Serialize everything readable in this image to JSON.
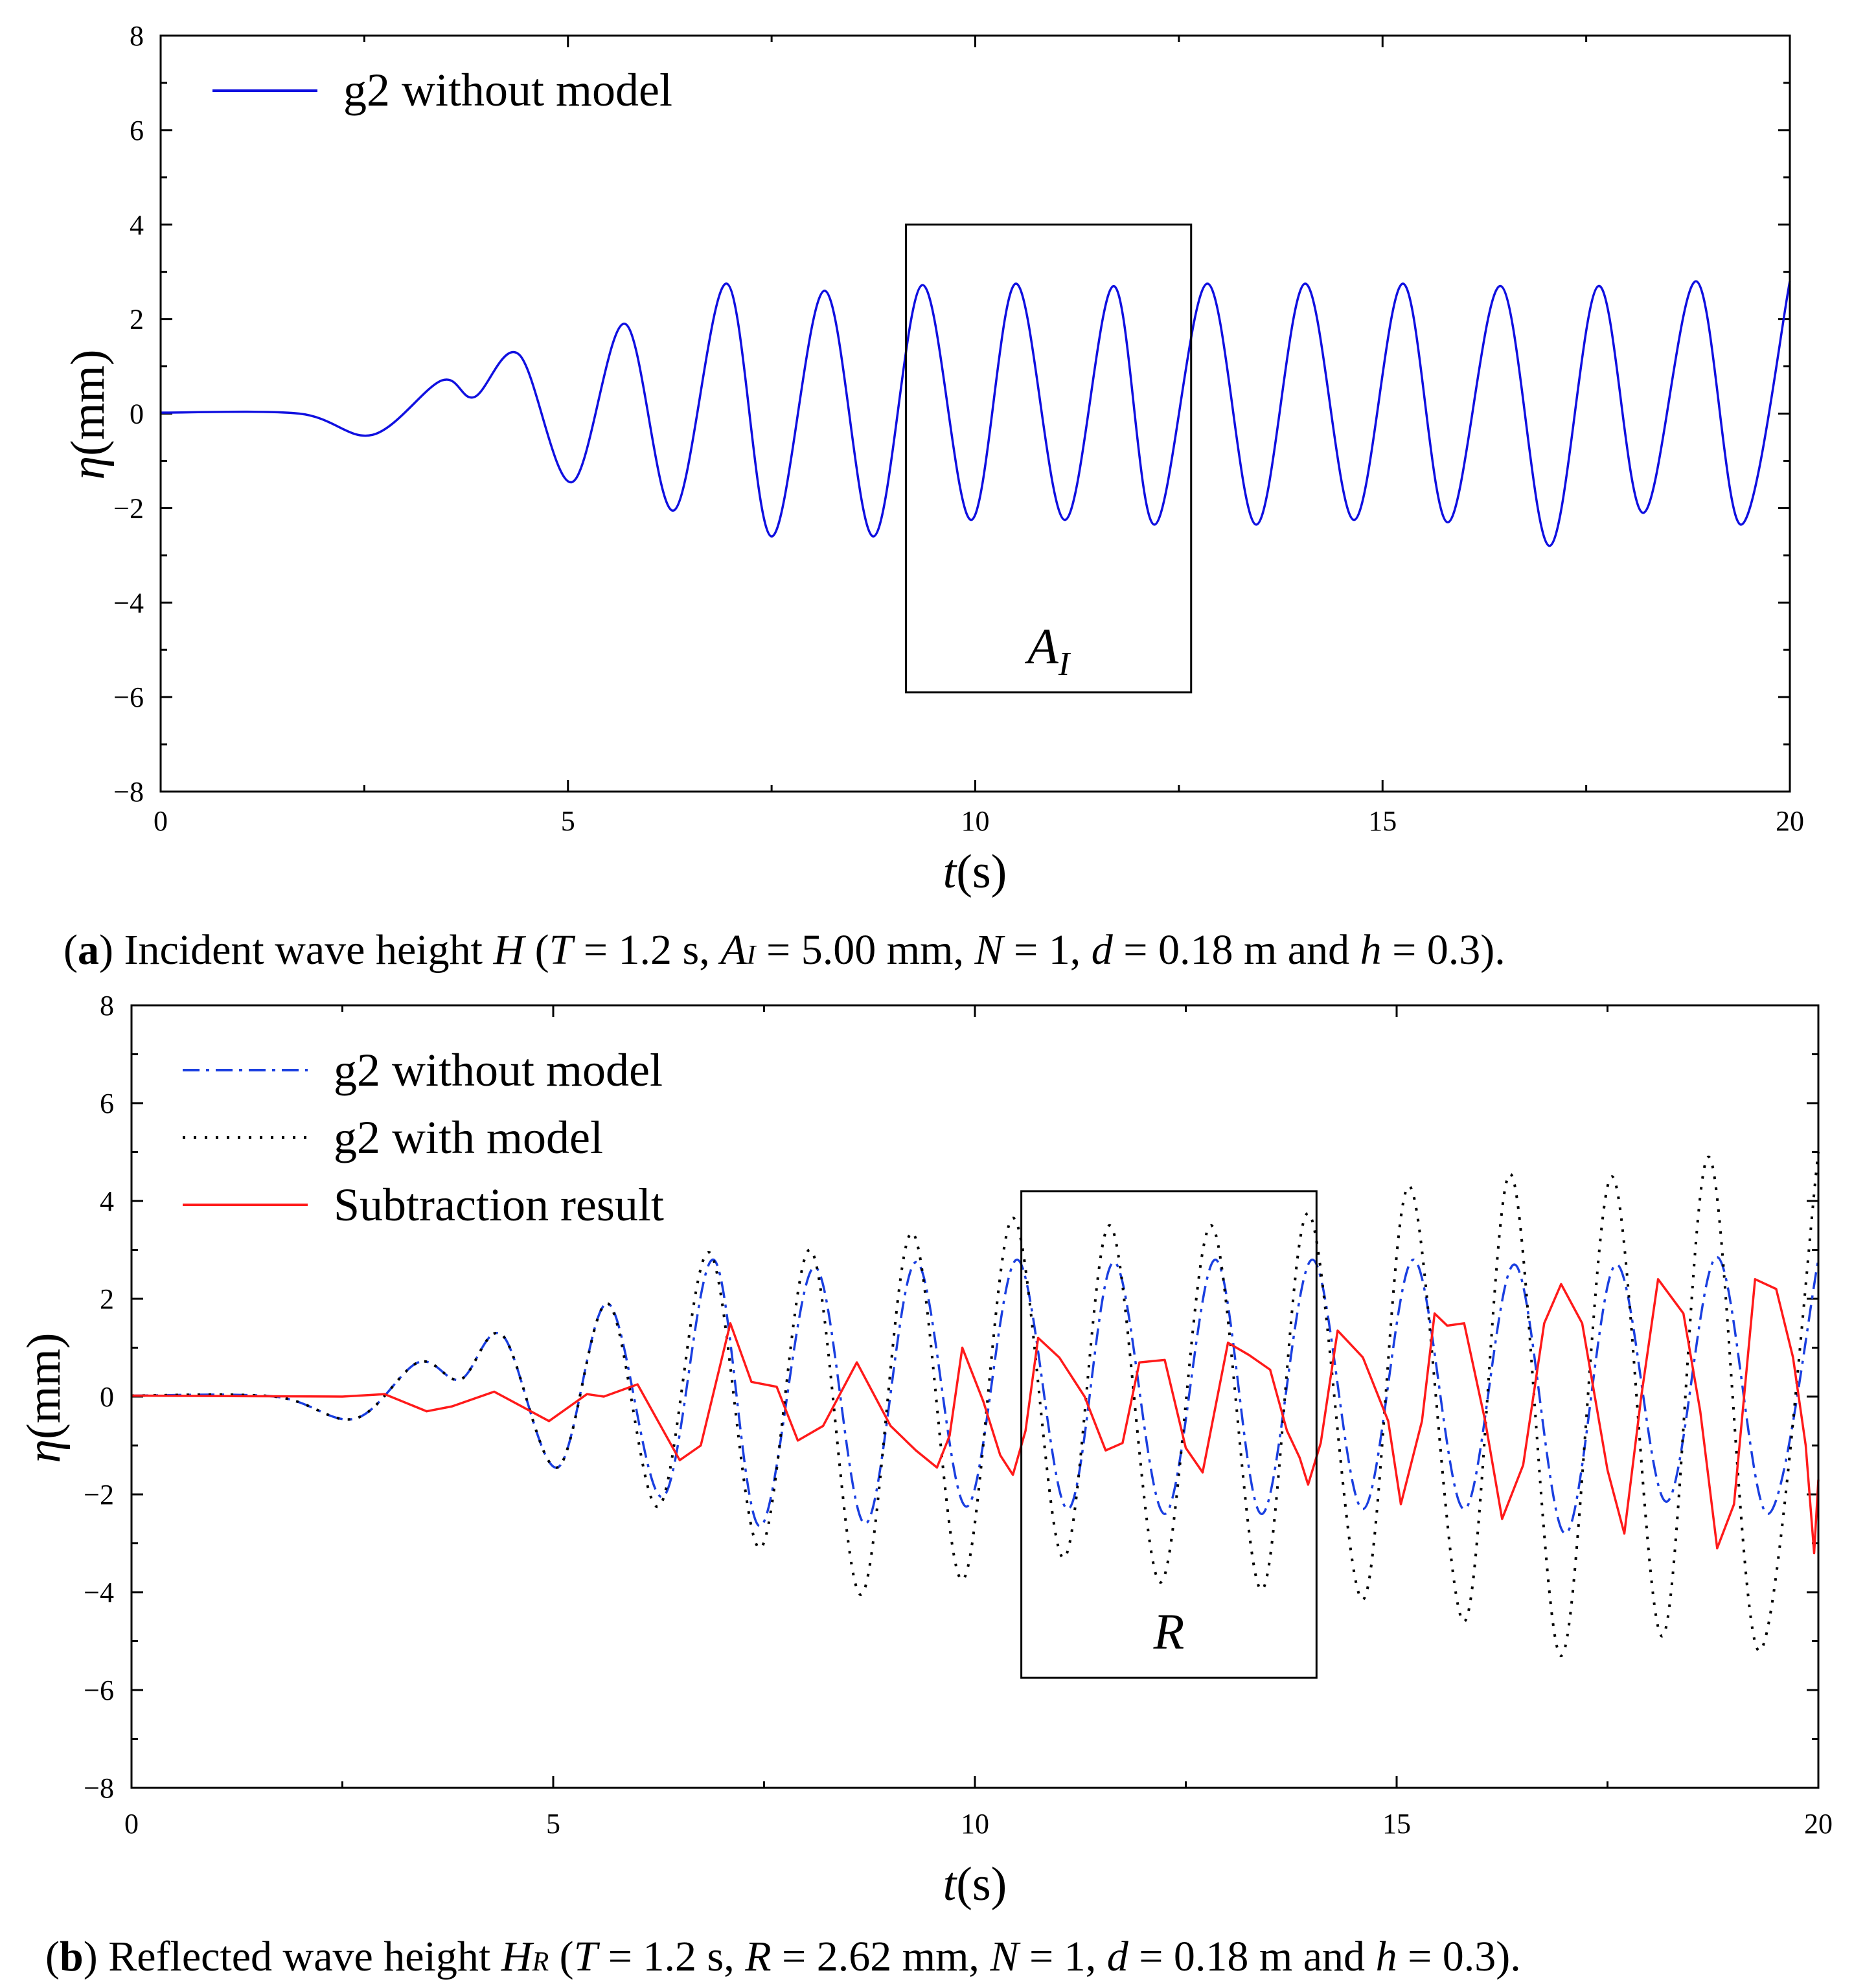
{
  "chart_data": [
    {
      "type": "line",
      "panel": "a",
      "xlabel_var": "t",
      "xlabel_unit": "(s)",
      "ylabel_var": "η",
      "ylabel_unit": "(mm)",
      "xlim": [
        0,
        20
      ],
      "ylim": [
        -8,
        8
      ],
      "xticks": [
        0,
        5,
        10,
        15,
        20
      ],
      "yticks": [
        8,
        6,
        4,
        2,
        0,
        -2,
        -4,
        -6,
        -8
      ],
      "ytick_labels": [
        "8",
        "6",
        "4",
        "2",
        "0",
        "−2",
        "−4",
        "−6",
        "−8"
      ],
      "legend": [
        "g2 without model"
      ],
      "box_label": "A",
      "box_label_sub": "I",
      "box_range": {
        "t": [
          9.15,
          12.65
        ],
        "eta": [
          -5.9,
          4.0
        ]
      },
      "series": [
        {
          "name": "g2 without model",
          "color": "#1010e0",
          "style": "solid",
          "points": [
            [
              0,
              0.02
            ],
            [
              1.7,
              0
            ],
            [
              2.6,
              -0.45
            ],
            [
              3.45,
              0.7
            ],
            [
              3.85,
              0.35
            ],
            [
              4.4,
              1.25
            ],
            [
              5.05,
              -1.45
            ],
            [
              5.7,
              1.9
            ],
            [
              6.3,
              -2.05
            ],
            [
              6.95,
              2.75
            ],
            [
              7.5,
              -2.6
            ],
            [
              8.15,
              2.6
            ],
            [
              8.75,
              -2.6
            ],
            [
              9.35,
              2.72
            ],
            [
              9.95,
              -2.25
            ],
            [
              10.5,
              2.75
            ],
            [
              11.1,
              -2.25
            ],
            [
              11.7,
              2.7
            ],
            [
              12.2,
              -2.35
            ],
            [
              12.85,
              2.75
            ],
            [
              13.45,
              -2.35
            ],
            [
              14.05,
              2.75
            ],
            [
              14.65,
              -2.25
            ],
            [
              15.25,
              2.75
            ],
            [
              15.8,
              -2.3
            ],
            [
              16.45,
              2.7
            ],
            [
              17.05,
              -2.8
            ],
            [
              17.65,
              2.7
            ],
            [
              18.2,
              -2.1
            ],
            [
              18.85,
              2.8
            ],
            [
              19.4,
              -2.35
            ],
            [
              20,
              2.8
            ]
          ]
        }
      ],
      "caption": {
        "label": "a",
        "text_1": "Incident wave height ",
        "var_H": "H",
        "text_2": " (",
        "var_T": "T",
        "text_3": " = 1.2 s, ",
        "var_A": "A",
        "var_A_sub": "I",
        "text_4": " = 5.00 mm, ",
        "var_N": "N",
        "text_5": " = 1, ",
        "var_d": "d",
        "text_6": " = 0.18 m and ",
        "var_h": "h",
        "text_7": " = 0.3)."
      }
    },
    {
      "type": "line",
      "panel": "b",
      "xlabel_var": "t",
      "xlabel_unit": "(s)",
      "ylabel_var": "η",
      "ylabel_unit": "(mm)",
      "xlim": [
        0,
        20
      ],
      "ylim": [
        -8,
        8
      ],
      "xticks": [
        0,
        5,
        10,
        15,
        20
      ],
      "yticks": [
        8,
        6,
        4,
        2,
        0,
        -2,
        -4,
        -6,
        -8
      ],
      "ytick_labels": [
        "8",
        "6",
        "4",
        "2",
        "0",
        "−2",
        "−4",
        "−6",
        "−8"
      ],
      "legend": [
        "g2 without model",
        "g2 with model",
        "Subtraction result"
      ],
      "box_label": "R",
      "box_range": {
        "t": [
          10.55,
          14.05
        ],
        "eta": [
          -5.75,
          4.2
        ]
      },
      "series": [
        {
          "name": "g2 without model",
          "color": "#1a3fe0",
          "style": "dashdot",
          "points": [
            [
              0,
              0.02
            ],
            [
              1.7,
              0
            ],
            [
              2.65,
              -0.45
            ],
            [
              3.4,
              0.7
            ],
            [
              3.9,
              0.35
            ],
            [
              4.4,
              1.25
            ],
            [
              5.05,
              -1.45
            ],
            [
              5.65,
              1.9
            ],
            [
              6.3,
              -2.05
            ],
            [
              6.9,
              2.8
            ],
            [
              7.45,
              -2.65
            ],
            [
              8.1,
              2.65
            ],
            [
              8.7,
              -2.6
            ],
            [
              9.3,
              2.75
            ],
            [
              9.9,
              -2.25
            ],
            [
              10.5,
              2.8
            ],
            [
              11.1,
              -2.3
            ],
            [
              11.65,
              2.75
            ],
            [
              12.25,
              -2.4
            ],
            [
              12.85,
              2.8
            ],
            [
              13.4,
              -2.4
            ],
            [
              14.0,
              2.8
            ],
            [
              14.6,
              -2.3
            ],
            [
              15.2,
              2.8
            ],
            [
              15.8,
              -2.3
            ],
            [
              16.4,
              2.7
            ],
            [
              17.0,
              -2.8
            ],
            [
              17.6,
              2.7
            ],
            [
              18.2,
              -2.15
            ],
            [
              18.8,
              2.85
            ],
            [
              19.4,
              -2.4
            ],
            [
              20,
              2.8
            ]
          ]
        },
        {
          "name": "g2 with model",
          "color": "#000000",
          "style": "dotted",
          "points": [
            [
              0,
              0.02
            ],
            [
              1.7,
              0
            ],
            [
              2.65,
              -0.45
            ],
            [
              3.4,
              0.7
            ],
            [
              3.9,
              0.35
            ],
            [
              4.4,
              1.25
            ],
            [
              5.05,
              -1.45
            ],
            [
              5.65,
              1.9
            ],
            [
              6.25,
              -2.25
            ],
            [
              6.85,
              2.95
            ],
            [
              7.45,
              -3.1
            ],
            [
              8.05,
              3.0
            ],
            [
              8.65,
              -4.05
            ],
            [
              9.25,
              3.35
            ],
            [
              9.85,
              -3.75
            ],
            [
              10.45,
              3.65
            ],
            [
              11.05,
              -3.3
            ],
            [
              11.6,
              3.5
            ],
            [
              12.2,
              -3.8
            ],
            [
              12.8,
              3.5
            ],
            [
              13.4,
              -3.95
            ],
            [
              13.95,
              3.75
            ],
            [
              14.6,
              -4.15
            ],
            [
              15.15,
              4.3
            ],
            [
              15.8,
              -4.6
            ],
            [
              16.35,
              4.55
            ],
            [
              16.95,
              -5.3
            ],
            [
              17.55,
              4.5
            ],
            [
              18.15,
              -4.9
            ],
            [
              18.7,
              4.9
            ],
            [
              19.3,
              -5.2
            ],
            [
              20,
              5.0
            ]
          ]
        },
        {
          "name": "Subtraction result",
          "color": "#ff1a1a",
          "style": "solid",
          "points": [
            [
              0,
              0.02
            ],
            [
              2.5,
              0.0
            ],
            [
              3.0,
              0.05
            ],
            [
              3.5,
              -0.3
            ],
            [
              3.8,
              -0.2
            ],
            [
              4.3,
              0.1
            ],
            [
              4.95,
              -0.5
            ],
            [
              5.4,
              0.05
            ],
            [
              5.6,
              0.0
            ],
            [
              6.0,
              0.25
            ],
            [
              6.5,
              -1.3
            ],
            [
              6.75,
              -1.0
            ],
            [
              7.1,
              1.5
            ],
            [
              7.35,
              0.3
            ],
            [
              7.65,
              0.2
            ],
            [
              7.9,
              -0.9
            ],
            [
              8.2,
              -0.6
            ],
            [
              8.6,
              0.7
            ],
            [
              9.0,
              -0.6
            ],
            [
              9.3,
              -1.1
            ],
            [
              9.55,
              -1.45
            ],
            [
              9.7,
              -0.8
            ],
            [
              9.85,
              1.0
            ],
            [
              10.1,
              -0.1
            ],
            [
              10.3,
              -1.2
            ],
            [
              10.45,
              -1.6
            ],
            [
              10.6,
              -0.7
            ],
            [
              10.75,
              1.2
            ],
            [
              11.0,
              0.8
            ],
            [
              11.3,
              0.0
            ],
            [
              11.55,
              -1.1
            ],
            [
              11.75,
              -0.95
            ],
            [
              11.95,
              0.7
            ],
            [
              12.25,
              0.75
            ],
            [
              12.5,
              -1.05
            ],
            [
              12.7,
              -1.55
            ],
            [
              13.0,
              1.1
            ],
            [
              13.25,
              0.85
            ],
            [
              13.5,
              0.55
            ],
            [
              13.7,
              -0.7
            ],
            [
              13.85,
              -1.25
            ],
            [
              13.95,
              -1.8
            ],
            [
              14.1,
              -0.95
            ],
            [
              14.3,
              1.35
            ],
            [
              14.6,
              0.8
            ],
            [
              14.9,
              -0.5
            ],
            [
              15.05,
              -2.2
            ],
            [
              15.3,
              -0.5
            ],
            [
              15.45,
              1.7
            ],
            [
              15.6,
              1.45
            ],
            [
              15.8,
              1.5
            ],
            [
              16.05,
              -0.5
            ],
            [
              16.25,
              -2.5
            ],
            [
              16.5,
              -1.4
            ],
            [
              16.75,
              1.5
            ],
            [
              16.95,
              2.3
            ],
            [
              17.2,
              1.5
            ],
            [
              17.5,
              -1.5
            ],
            [
              17.7,
              -2.8
            ],
            [
              17.9,
              0.0
            ],
            [
              18.1,
              2.4
            ],
            [
              18.4,
              1.7
            ],
            [
              18.6,
              -0.3
            ],
            [
              18.8,
              -3.1
            ],
            [
              19.0,
              -2.2
            ],
            [
              19.25,
              2.4
            ],
            [
              19.5,
              2.2
            ],
            [
              19.7,
              0.8
            ],
            [
              19.85,
              -1.0
            ],
            [
              19.95,
              -3.2
            ],
            [
              20,
              -1.7
            ]
          ]
        }
      ],
      "caption": {
        "label": "b",
        "text_1": "Reflected wave height ",
        "var_H": "H",
        "var_H_sub": "R",
        "text_2": " (",
        "var_T": "T",
        "text_3": " = 1.2 s, ",
        "var_R": "R",
        "text_4": " = 2.62 mm, ",
        "var_N": "N",
        "text_5": " = 1, ",
        "var_d": "d",
        "text_6": " = 0.18 m and ",
        "var_h": "h",
        "text_7": " = 0.3)."
      }
    }
  ]
}
